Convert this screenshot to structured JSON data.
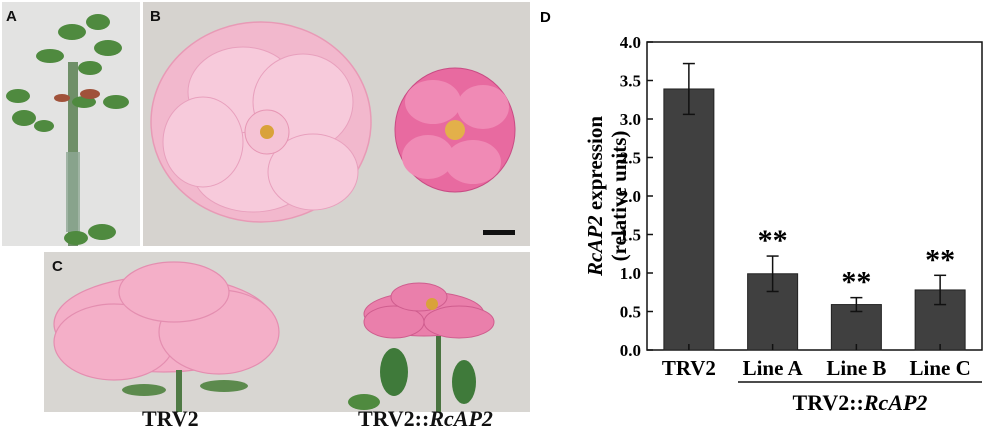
{
  "panels": {
    "a_letter": "A",
    "b_letter": "B",
    "c_letter": "C",
    "d_letter": "D"
  },
  "captions": {
    "c_left": "TRV2",
    "c_right_prefix": "TRV2::",
    "c_right_gene": "RcAP2"
  },
  "colors": {
    "bar": "#404040",
    "rose_light": "#f4b6cc",
    "rose_dark": "#e0508e",
    "leaf": "#3f7a3a",
    "photo_bg": "#d9d6d2"
  },
  "chart_data": {
    "type": "bar",
    "categories": [
      "TRV2",
      "Line A",
      "Line B",
      "Line C"
    ],
    "values": [
      3.39,
      0.99,
      0.59,
      0.78
    ],
    "errors": [
      0.33,
      0.23,
      0.09,
      0.19
    ],
    "significance": [
      "",
      "**",
      "**",
      "**"
    ],
    "ylabel_gene": "RcAP2",
    "ylabel_rest": " expression",
    "ylabel_line2": "(relative units)",
    "group_label_prefix": "TRV2::",
    "group_label_gene": "RcAP2",
    "ylim": [
      0,
      4.0
    ],
    "yticks": [
      "0.0",
      "0.5",
      "1.0",
      "1.5",
      "2.0",
      "2.5",
      "3.0",
      "3.5",
      "4.0"
    ],
    "grid": false
  }
}
